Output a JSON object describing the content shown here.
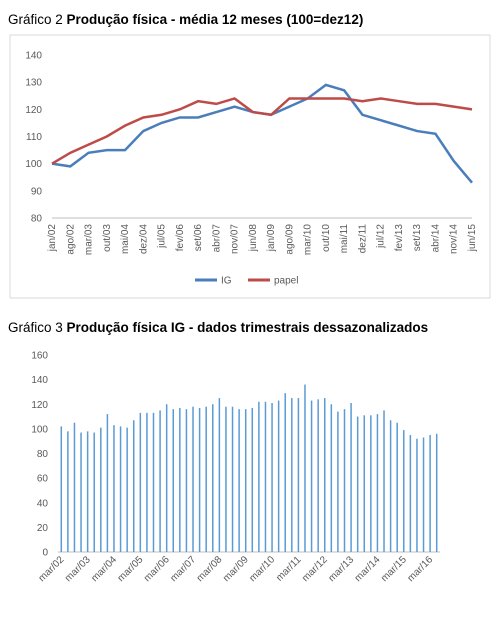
{
  "chart_data": [
    {
      "type": "line",
      "figure_label": "Gráfico 2",
      "title": "Produção física - média 12 meses (100=dez12)",
      "categories": [
        "jan/02",
        "ago/02",
        "mar/03",
        "out/03",
        "mai/04",
        "dez/04",
        "jul/05",
        "fev/06",
        "set/06",
        "abr/07",
        "nov/07",
        "jun/08",
        "jan/09",
        "ago/09",
        "mar/10",
        "out/10",
        "mai/11",
        "dez/11",
        "jul/12",
        "fev/13",
        "set/13",
        "abr/14",
        "nov/14",
        "jun/15"
      ],
      "series": [
        {
          "name": "IG",
          "color": "#4a7ebb",
          "values": [
            100,
            99,
            104,
            105,
            105,
            112,
            115,
            117,
            117,
            119,
            121,
            119,
            118,
            121,
            124,
            129,
            127,
            118,
            116,
            114,
            112,
            111,
            101,
            93
          ]
        },
        {
          "name": "papel",
          "color": "#be4b48",
          "values": [
            100,
            104,
            107,
            110,
            114,
            117,
            118,
            120,
            123,
            122,
            124,
            119,
            118,
            124,
            124,
            124,
            124,
            123,
            124,
            123,
            122,
            122,
            121,
            120
          ]
        }
      ],
      "ylim": [
        80,
        140
      ],
      "yticks": [
        80,
        90,
        100,
        110,
        120,
        130,
        140
      ],
      "legend": "bottom"
    },
    {
      "type": "bar",
      "figure_label": "Gráfico 3",
      "title": "Produção física IG - dados trimestrais dessazonalizados",
      "categories": [
        "mar/02",
        null,
        null,
        null,
        "mar/03",
        null,
        null,
        null,
        "mar/04",
        null,
        null,
        null,
        "mar/05",
        null,
        null,
        null,
        "mar/06",
        null,
        null,
        null,
        "mar/07",
        null,
        null,
        null,
        "mar/08",
        null,
        null,
        null,
        "mar/09",
        null,
        null,
        null,
        "mar/10",
        null,
        null,
        null,
        "mar/11",
        null,
        null,
        null,
        "mar/12",
        null,
        null,
        null,
        "mar/13",
        null,
        null,
        null,
        "mar/14",
        null,
        null,
        null,
        "mar/15",
        null,
        null,
        null,
        "mar/16",
        null
      ],
      "color": "#5b9bd5",
      "values": [
        102,
        98,
        105,
        97,
        98,
        97,
        101,
        112,
        103,
        102,
        101,
        107,
        113,
        113,
        113,
        115,
        120,
        116,
        117,
        116,
        118,
        117,
        118,
        120,
        125,
        118,
        118,
        116,
        116,
        117,
        122,
        122,
        121,
        123,
        129,
        125,
        125,
        136,
        123,
        124,
        125,
        120,
        114,
        116,
        121,
        110,
        111,
        111,
        112,
        115,
        107,
        105,
        99,
        95,
        92,
        93,
        95,
        96
      ],
      "ylim": [
        0,
        160
      ],
      "yticks": [
        0,
        20,
        40,
        60,
        80,
        100,
        120,
        140,
        160
      ]
    }
  ]
}
